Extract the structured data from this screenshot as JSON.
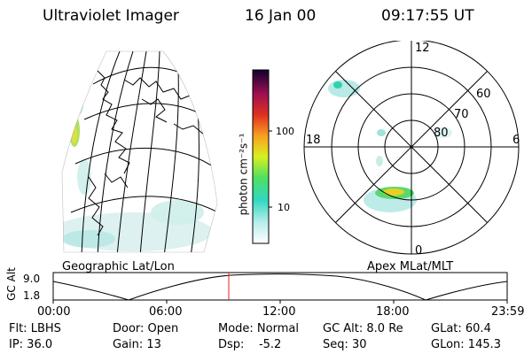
{
  "header": {
    "title": "Ultraviolet Imager",
    "date": "16 Jan 00",
    "time": "09:17:55 UT"
  },
  "colorbar": {
    "unit_label": "photon cm⁻²s⁻¹",
    "tick_100": "100",
    "tick_10": "10"
  },
  "left_panel": {
    "label": "Geographic Lat/Lon"
  },
  "right_panel": {
    "label": "Apex MLat/MLT",
    "lat_labels": [
      "60",
      "70",
      "80"
    ],
    "mlt_labels": {
      "top": "12",
      "bottom": "0",
      "left": "18",
      "right": "6"
    }
  },
  "timeline": {
    "ylabel": "GC Alt",
    "y_ticks": [
      "9.0",
      "1.8"
    ],
    "x_ticks": [
      "00:00",
      "06:00",
      "12:00",
      "18:00",
      "23:59"
    ],
    "cursor_time": "09:17:55"
  },
  "status": {
    "row1": {
      "filter": "Flt: LBHS",
      "door": "Door: Open",
      "mode": "Mode: Normal",
      "gc_alt": "GC Alt: 8.0 Re",
      "glat": "GLat: 60.4"
    },
    "row2": {
      "ip": "IP: 36.0",
      "gain": "Gain: 13",
      "dsp": "Dsp:    -5.2",
      "seq": "Seq: 30",
      "glon": "GLon: 145.3"
    }
  },
  "colors": {
    "foreground": "#000000",
    "background": "#ffffff",
    "cursor": "#e02020"
  }
}
